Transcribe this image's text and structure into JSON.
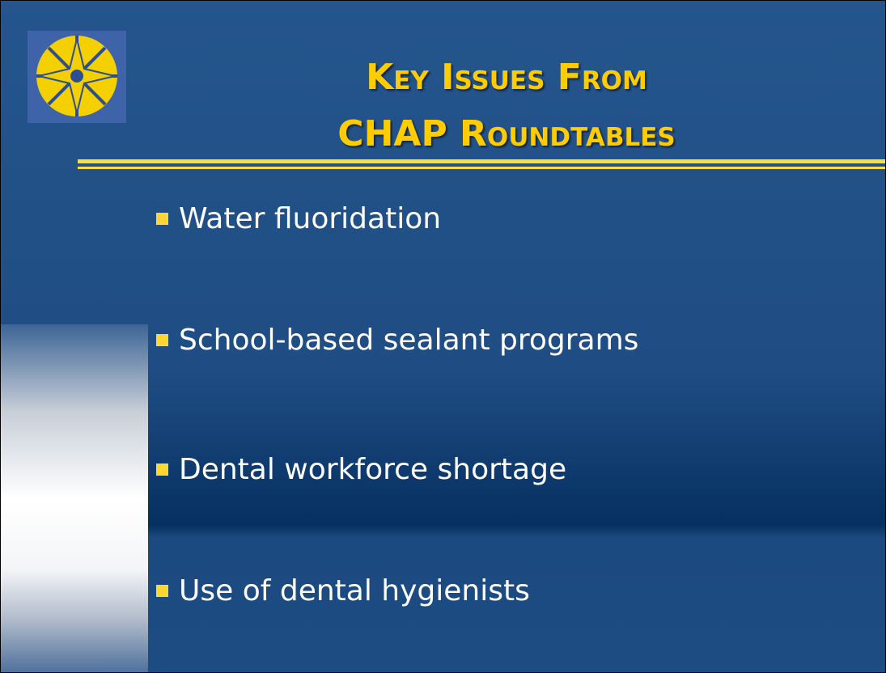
{
  "title": {
    "lines": [
      "Key Issues From",
      "CHAP Roundtables"
    ]
  },
  "bullets": [
    "Water fluoridation",
    "School-based sealant programs",
    "Dental workforce shortage",
    "Use of dental hygienists"
  ]
}
